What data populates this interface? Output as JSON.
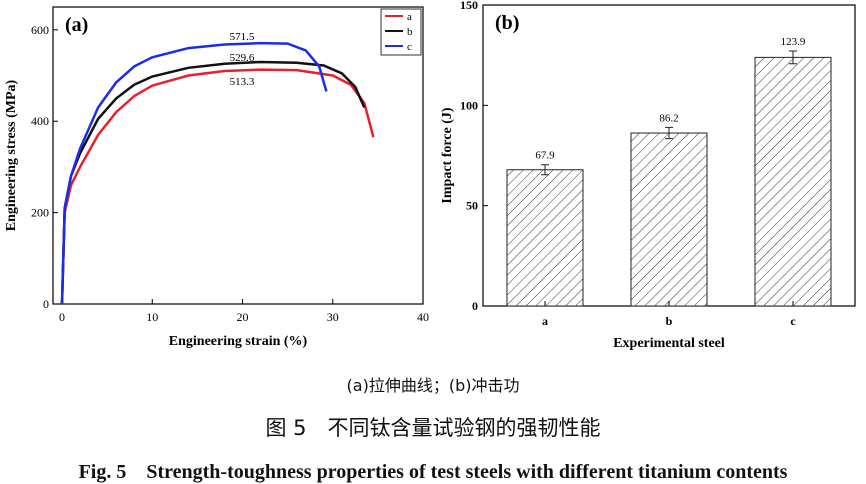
{
  "chart_data": [
    {
      "type": "line",
      "title": "(a)",
      "xlabel": "Engineering strain (%)",
      "ylabel": "Engineering stress (MPa)",
      "xlim": [
        -1,
        40
      ],
      "xticks": [
        0,
        10,
        20,
        30,
        40
      ],
      "ylim": [
        0,
        650
      ],
      "yticks": [
        0,
        200,
        400,
        600
      ],
      "legend": "upper right",
      "series": [
        {
          "name": "a",
          "color": "#e8202a",
          "x": [
            0,
            0.3,
            1,
            2,
            4,
            6,
            8,
            10,
            14,
            18,
            22,
            26,
            30,
            32,
            33.5,
            34.5
          ],
          "values": [
            0,
            200,
            260,
            300,
            370,
            420,
            455,
            478,
            500,
            510,
            513,
            512,
            500,
            480,
            440,
            365
          ]
        },
        {
          "name": "b",
          "color": "#111111",
          "x": [
            0,
            0.3,
            1,
            2,
            4,
            6,
            8,
            10,
            14,
            18,
            22,
            26,
            29,
            31,
            32.5,
            33.5
          ],
          "values": [
            0,
            210,
            280,
            330,
            405,
            450,
            480,
            498,
            517,
            526,
            529.6,
            528,
            522,
            505,
            475,
            430
          ]
        },
        {
          "name": "c",
          "color": "#1a2ee8",
          "x": [
            0,
            0.3,
            1,
            2,
            4,
            6,
            8,
            10,
            14,
            18,
            22,
            25,
            27,
            28.5,
            29.3
          ],
          "values": [
            0,
            210,
            280,
            340,
            430,
            485,
            520,
            540,
            560,
            568,
            571,
            570,
            555,
            520,
            465
          ]
        }
      ],
      "annotations": [
        "571.5",
        "529.6",
        "513.3"
      ]
    },
    {
      "type": "bar",
      "title": "(b)",
      "xlabel": "Experimental steel",
      "ylabel": "Impact force (J)",
      "categories": [
        "a",
        "b",
        "c"
      ],
      "values": [
        67.9,
        86.2,
        123.9
      ],
      "errors": [
        2.5,
        2.8,
        3.2
      ],
      "value_labels": [
        "67.9",
        "86.2",
        "123.9"
      ],
      "ylim": [
        0,
        150
      ],
      "yticks": [
        0,
        50,
        100,
        150
      ]
    }
  ],
  "captions": [
    "(a)拉伸曲线；(b)冲击功",
    "图 5　不同钛含量试验钢的强韧性能",
    "Fig. 5　Strength-toughness properties of test steels with different titanium contents"
  ]
}
